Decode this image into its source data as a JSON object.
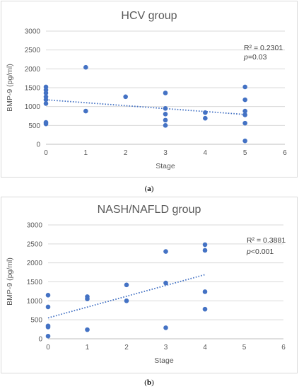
{
  "chart_data": [
    {
      "type": "scatter",
      "title": "HCV group",
      "xlabel": "Stage",
      "ylabel": "BMP-9 (pg/ml)",
      "xlim": [
        0,
        6
      ],
      "ylim": [
        0,
        3000
      ],
      "xticks": [
        "0",
        "1",
        "2",
        "3",
        "4",
        "5",
        "6"
      ],
      "yticks": [
        "0",
        "500",
        "1000",
        "1500",
        "2000",
        "2500",
        "3000"
      ],
      "grid": "horizontal",
      "points": [
        {
          "x": 0,
          "y": 1520
        },
        {
          "x": 0,
          "y": 1440
        },
        {
          "x": 0,
          "y": 1360
        },
        {
          "x": 0,
          "y": 1260
        },
        {
          "x": 0,
          "y": 1180
        },
        {
          "x": 0,
          "y": 1080
        },
        {
          "x": 0,
          "y": 580
        },
        {
          "x": 0,
          "y": 540
        },
        {
          "x": 1,
          "y": 2040
        },
        {
          "x": 1,
          "y": 880
        },
        {
          "x": 2,
          "y": 1260
        },
        {
          "x": 3,
          "y": 1360
        },
        {
          "x": 3,
          "y": 950
        },
        {
          "x": 3,
          "y": 800
        },
        {
          "x": 3,
          "y": 640
        },
        {
          "x": 3,
          "y": 500
        },
        {
          "x": 4,
          "y": 840
        },
        {
          "x": 4,
          "y": 690
        },
        {
          "x": 5,
          "y": 1520
        },
        {
          "x": 5,
          "y": 1180
        },
        {
          "x": 5,
          "y": 880
        },
        {
          "x": 5,
          "y": 780
        },
        {
          "x": 5,
          "y": 560
        },
        {
          "x": 5,
          "y": 90
        }
      ],
      "trendline": {
        "x": [
          0,
          5
        ],
        "y": [
          1180,
          790
        ]
      },
      "stats": {
        "r2_label": "R² = 0.2301",
        "p_symbol": "p",
        "p_rest": "=0.03"
      },
      "marker_color": "#4472c4",
      "caption": {
        "open": "(",
        "letter": "a",
        "close": ")"
      }
    },
    {
      "type": "scatter",
      "title": "NASH/NAFLD group",
      "xlabel": "Stage",
      "ylabel": "BMP-9 (pg/ml)",
      "xlim": [
        0,
        6
      ],
      "ylim": [
        0,
        3000
      ],
      "xticks": [
        "0",
        "1",
        "2",
        "3",
        "4",
        "5",
        "6"
      ],
      "yticks": [
        "0",
        "500",
        "1000",
        "1500",
        "2000",
        "2500",
        "3000"
      ],
      "grid": "horizontal",
      "points": [
        {
          "x": 0,
          "y": 1150
        },
        {
          "x": 0,
          "y": 840
        },
        {
          "x": 0,
          "y": 340
        },
        {
          "x": 0,
          "y": 310
        },
        {
          "x": 0,
          "y": 70
        },
        {
          "x": 1,
          "y": 1110
        },
        {
          "x": 1,
          "y": 1050
        },
        {
          "x": 1,
          "y": 240
        },
        {
          "x": 2,
          "y": 1420
        },
        {
          "x": 2,
          "y": 1000
        },
        {
          "x": 3,
          "y": 2300
        },
        {
          "x": 3,
          "y": 1470
        },
        {
          "x": 3,
          "y": 290
        },
        {
          "x": 4,
          "y": 2480
        },
        {
          "x": 4,
          "y": 2330
        },
        {
          "x": 4,
          "y": 1240
        },
        {
          "x": 4,
          "y": 780
        }
      ],
      "trendline": {
        "x": [
          0,
          4
        ],
        "y": [
          550,
          1690
        ]
      },
      "stats": {
        "r2_label": "R² = 0.3881",
        "p_symbol": "p",
        "p_rest": "<0.001"
      },
      "marker_color": "#4472c4",
      "caption": {
        "open": "(",
        "letter": "b",
        "close": ")"
      }
    }
  ]
}
